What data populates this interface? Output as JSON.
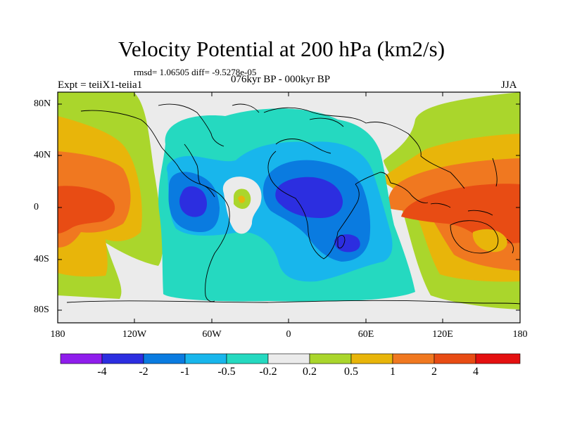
{
  "title": "Velocity Potential at 200 hPa (km2/s)",
  "subtitle": "rmsd= 1.06505 diff= -9.5278e-05",
  "period": "076kyr BP - 000kyr BP",
  "experiment": "Expt = teiiX1-teiia1",
  "season": "JJA",
  "axes": {
    "y_ticks": [
      "80N",
      "40N",
      "0",
      "40S",
      "80S"
    ],
    "x_ticks": [
      "180",
      "120W",
      "60W",
      "0",
      "60E",
      "120E",
      "180"
    ]
  },
  "colorbar": {
    "labels": [
      "-4",
      "-2",
      "-1",
      "-0.5",
      "-0.2",
      "0.2",
      "0.5",
      "1",
      "2",
      "4"
    ],
    "colors": [
      "#8f1dec",
      "#2c2ee0",
      "#0a7be0",
      "#18b6ec",
      "#25d9c0",
      "#ebebeb",
      "#aad62c",
      "#e8b50a",
      "#f07820",
      "#e84c14",
      "#e41010"
    ]
  },
  "map_colors": {
    "ocean_base": "#ebebeb",
    "pos_02": "#aad62c",
    "pos_05": "#e8b50a",
    "pos_1": "#f07820",
    "pos_2": "#e84c14",
    "neg_02": "#25d9c0",
    "neg_05": "#18b6ec",
    "neg_1": "#0a7be0",
    "neg_2": "#2c2ee0"
  }
}
